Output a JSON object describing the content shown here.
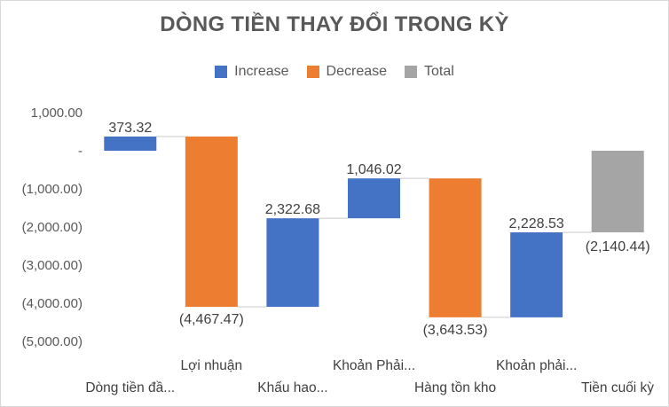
{
  "chart_data": {
    "type": "waterfall",
    "title": "DÒNG TIỀN THAY ĐỔI TRONG KỲ",
    "legend": [
      {
        "name": "Increase",
        "color": "#4472c4"
      },
      {
        "name": "Decrease",
        "color": "#ed7d31"
      },
      {
        "name": "Total",
        "color": "#a5a5a5"
      }
    ],
    "ylim": [
      -5000,
      1000
    ],
    "yticks": [
      1000,
      0,
      -1000,
      -2000,
      -3000,
      -4000,
      -5000
    ],
    "ytick_labels": [
      "1,000.00",
      "-",
      "(1,000.00)",
      "(2,000.00)",
      "(3,000.00)",
      "(4,000.00)",
      "(5,000.00)"
    ],
    "categories": [
      "Dòng tiền đầ...",
      "Lợi nhuận",
      "Khấu hao...",
      "Khoản Phải...",
      "Hàng tồn kho",
      "Khoản phải...",
      "Tiền cuối kỳ"
    ],
    "values": [
      373.32,
      -4467.47,
      2322.68,
      1046.02,
      -3643.53,
      2228.53,
      -2140.44
    ],
    "kinds": [
      "increase",
      "decrease",
      "increase",
      "increase",
      "decrease",
      "increase",
      "total"
    ],
    "data_labels": [
      "373.32",
      "(4,467.47)",
      "2,322.68",
      "1,046.02",
      "(3,643.53)",
      "2,228.53",
      "(2,140.44)"
    ]
  }
}
